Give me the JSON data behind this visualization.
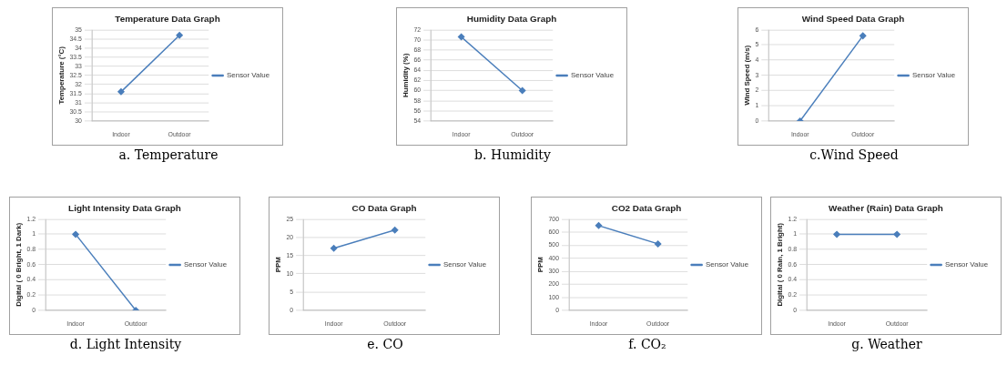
{
  "chart_data": [
    {
      "type": "line",
      "title": "Temperature Data Graph",
      "ylabel": "Temperature (°C)",
      "categories": [
        "Indoor",
        "Outdoor"
      ],
      "series": [
        {
          "name": "Sensor Value",
          "color": "#4a7ebb",
          "values": [
            31.6,
            34.7
          ]
        }
      ],
      "ylim": [
        30,
        35
      ],
      "yticks": [
        30,
        30.5,
        31,
        31.5,
        32,
        32.5,
        33,
        33.5,
        34,
        34.5,
        35
      ],
      "grid": "y",
      "legend": "right",
      "marker": "diamond",
      "line_style": "solid",
      "annotations": [
        "a. Temperature"
      ]
    },
    {
      "type": "line",
      "title": "Humidity Data Graph",
      "ylabel": "Humidity (%)",
      "categories": [
        "Indoor",
        "Outdoor"
      ],
      "series": [
        {
          "name": "Sensor Value",
          "color": "#4a7ebb",
          "values": [
            70.6,
            60
          ]
        }
      ],
      "ylim": [
        54,
        72
      ],
      "yticks": [
        54,
        56,
        58,
        60,
        62,
        64,
        66,
        68,
        70,
        72
      ],
      "grid": "y",
      "legend": "right",
      "marker": "diamond",
      "line_style": "solid",
      "annotations": [
        "b. Humidity"
      ]
    },
    {
      "type": "line",
      "title": "Wind Speed Data Graph",
      "ylabel": "Wind Speed (m/s)",
      "categories": [
        "Indoor",
        "Outdoor"
      ],
      "series": [
        {
          "name": "Sensor Value",
          "color": "#4a7ebb",
          "values": [
            0,
            5.6
          ]
        }
      ],
      "ylim": [
        0,
        6
      ],
      "yticks": [
        0,
        1,
        2,
        3,
        4,
        5,
        6
      ],
      "grid": "y",
      "legend": "right",
      "marker": "diamond",
      "line_style": "solid",
      "annotations": [
        "c.Wind Speed"
      ]
    },
    {
      "type": "line",
      "title": "Light Intensity Data Graph",
      "ylabel": "Digital ( 0 Bright, 1 Dark)",
      "categories": [
        "Indoor",
        "Outdoor"
      ],
      "series": [
        {
          "name": "Sensor Value",
          "color": "#4a7ebb",
          "values": [
            1,
            0
          ]
        }
      ],
      "ylim": [
        0,
        1.2
      ],
      "yticks": [
        0,
        0.2,
        0.4,
        0.6,
        0.8,
        1,
        1.2
      ],
      "grid": "y",
      "legend": "right",
      "marker": "diamond",
      "line_style": "solid",
      "annotations": [
        "d. Light Intensity"
      ]
    },
    {
      "type": "line",
      "title": "CO Data Graph",
      "ylabel": "PPM",
      "categories": [
        "Indoor",
        "Outdoor"
      ],
      "series": [
        {
          "name": "Sensor Value",
          "color": "#4a7ebb",
          "values": [
            17,
            22
          ]
        }
      ],
      "ylim": [
        0,
        25
      ],
      "yticks": [
        0,
        5,
        10,
        15,
        20,
        25
      ],
      "grid": "y",
      "legend": "right",
      "marker": "diamond",
      "line_style": "solid",
      "annotations": [
        "e. CO"
      ]
    },
    {
      "type": "line",
      "title": "CO2 Data Graph",
      "ylabel": "PPM",
      "categories": [
        "Indoor",
        "Outdoor"
      ],
      "series": [
        {
          "name": "Sensor Value",
          "color": "#4a7ebb",
          "values": [
            650,
            510
          ]
        }
      ],
      "ylim": [
        0,
        700
      ],
      "yticks": [
        0,
        100,
        200,
        300,
        400,
        500,
        600,
        700
      ],
      "grid": "y",
      "legend": "right",
      "marker": "diamond",
      "line_style": "solid",
      "annotations": [
        "f. CO₂"
      ]
    },
    {
      "type": "line",
      "title": "Weather (Rain) Data Graph",
      "ylabel": "Digital ( 0 Rain, 1 Bright)",
      "categories": [
        "Indoor",
        "Outdoor"
      ],
      "series": [
        {
          "name": "Sensor Value",
          "color": "#4a7ebb",
          "values": [
            1,
            1
          ]
        }
      ],
      "ylim": [
        0,
        1.2
      ],
      "yticks": [
        0,
        0.2,
        0.4,
        0.6,
        0.8,
        1,
        1.2
      ],
      "grid": "y",
      "legend": "right",
      "marker": "diamond",
      "line_style": "solid",
      "annotations": [
        "g. Weather"
      ]
    }
  ]
}
